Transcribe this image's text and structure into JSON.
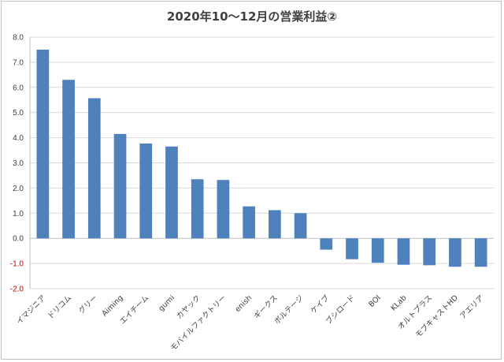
{
  "chart_data": {
    "type": "bar",
    "title": "2020年10～12月の営業利益②",
    "xlabel": "",
    "ylabel": "",
    "ylim": [
      -2.0,
      8.0
    ],
    "ytick_step": 1.0,
    "grid": true,
    "legend": "none",
    "colors": {
      "bar": "#4f81bd",
      "negative_tick": "#c00000"
    },
    "categories": [
      "イマジニア",
      "ドリコム",
      "グリー",
      "Aiming",
      "エイチーム",
      "gumi",
      "カヤック",
      "モバイルファクトリー",
      "enish",
      "ギークス",
      "ボルテージ",
      "ケイブ",
      "ブシロード",
      "BOI",
      "KLab",
      "オルトプラス",
      "モブキャストHD",
      "アエリア"
    ],
    "values": [
      7.5,
      6.3,
      5.57,
      4.15,
      3.77,
      3.65,
      2.35,
      2.32,
      1.27,
      1.12,
      1.0,
      -0.45,
      -0.83,
      -0.97,
      -1.05,
      -1.07,
      -1.13,
      -1.13
    ]
  }
}
